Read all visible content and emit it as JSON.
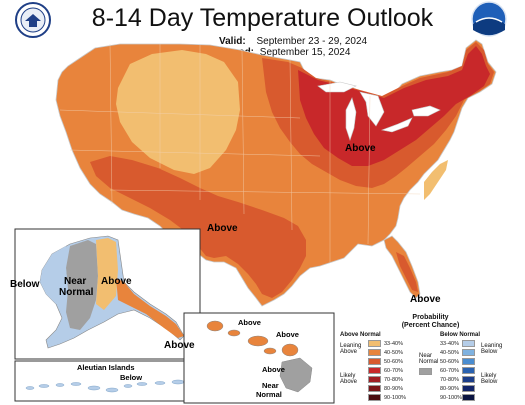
{
  "header": {
    "title": "8-14 Day Temperature Outlook",
    "valid_label": "Valid:",
    "valid_dates": "September 23 - 29, 2024",
    "issued_label": "Issued:",
    "issued_date": "September 15, 2024"
  },
  "logos": {
    "left": "commerce-seal",
    "right": "noaa-logo",
    "right_text": "NOAA"
  },
  "map_labels": {
    "conus_above_east": "Above",
    "conus_above_south": "Above",
    "florida_above": "Above",
    "alaska_below": "Below",
    "alaska_near": "Near",
    "alaska_normal": "Normal",
    "alaska_above": "Above",
    "alaska_above_se": "Above",
    "aleutian_title": "Aleutian Islands",
    "aleutian_below": "Below",
    "hawaii_above_1": "Above",
    "hawaii_above_2": "Above",
    "hawaii_above_3": "Above",
    "hawaii_near": "Near",
    "hawaii_normal": "Normal"
  },
  "legend": {
    "title_line1": "Probability",
    "title_line2": "(Percent Chance)",
    "above_header": "Above Normal",
    "below_header": "Below Normal",
    "leaning_above": "Leaning Above",
    "likely_above": "Likely Above",
    "leaning_below": "Leaning Below",
    "likely_below": "Likely Below",
    "near_normal": "Near Normal",
    "above_bins": [
      {
        "label": "33-40%",
        "color": "#f2be70"
      },
      {
        "label": "40-50%",
        "color": "#e8843c"
      },
      {
        "label": "50-60%",
        "color": "#d85a2e"
      },
      {
        "label": "60-70%",
        "color": "#c8282a"
      },
      {
        "label": "70-80%",
        "color": "#a01e24"
      },
      {
        "label": "80-90%",
        "color": "#7a1418"
      },
      {
        "label": "90-100%",
        "color": "#4a0c10"
      }
    ],
    "below_bins": [
      {
        "label": "33-40%",
        "color": "#b5cde8"
      },
      {
        "label": "40-50%",
        "color": "#7fb2e0"
      },
      {
        "label": "50-60%",
        "color": "#4a8dd0"
      },
      {
        "label": "60-70%",
        "color": "#2a62b0"
      },
      {
        "label": "70-80%",
        "color": "#1c3e8a"
      },
      {
        "label": "80-90%",
        "color": "#12256a"
      },
      {
        "label": "90-100%",
        "color": "#0a1440"
      }
    ],
    "near_color": "#a0a0a0"
  }
}
